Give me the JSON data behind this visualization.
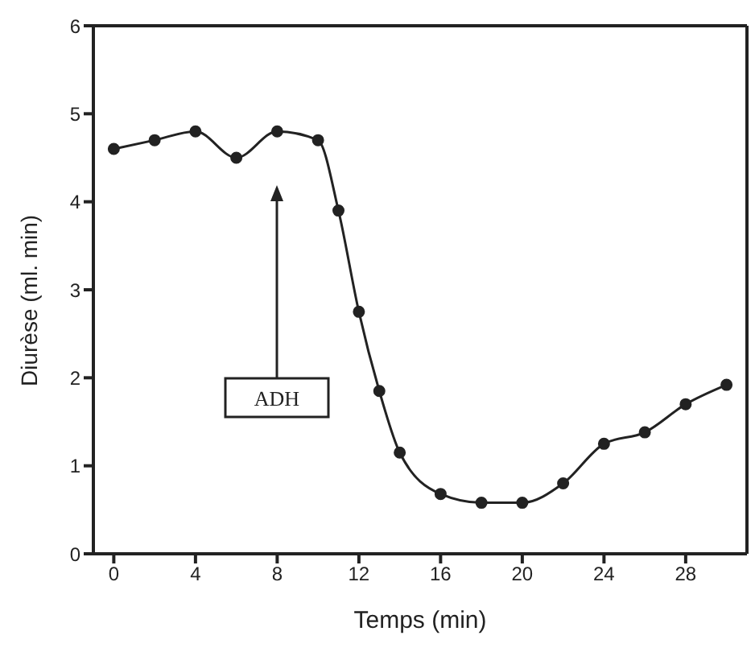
{
  "chart_data": {
    "type": "line",
    "xlabel": "Temps (min)",
    "ylabel": "Diurèse (ml. min)",
    "x": [
      0,
      2,
      4,
      6,
      8,
      10,
      11,
      12,
      13,
      14,
      16,
      18,
      20,
      22,
      24,
      26,
      28,
      30
    ],
    "series": [
      {
        "color": "#222222",
        "values": [
          4.6,
          4.7,
          4.8,
          4.5,
          4.8,
          4.7,
          3.9,
          2.75,
          1.85,
          1.15,
          0.68,
          0.58,
          0.58,
          0.8,
          1.25,
          1.38,
          1.7,
          1.92
        ]
      }
    ],
    "xlim": [
      -1,
      31
    ],
    "xticks": [
      0,
      4,
      8,
      12,
      16,
      20,
      24,
      28
    ],
    "ylim": [
      0,
      6
    ],
    "yticks": [
      0,
      1,
      2,
      3,
      4,
      5,
      6
    ],
    "marker": "circle",
    "line_style": "solid",
    "grid": false,
    "legend": false,
    "annotations": [
      "ADH"
    ]
  }
}
